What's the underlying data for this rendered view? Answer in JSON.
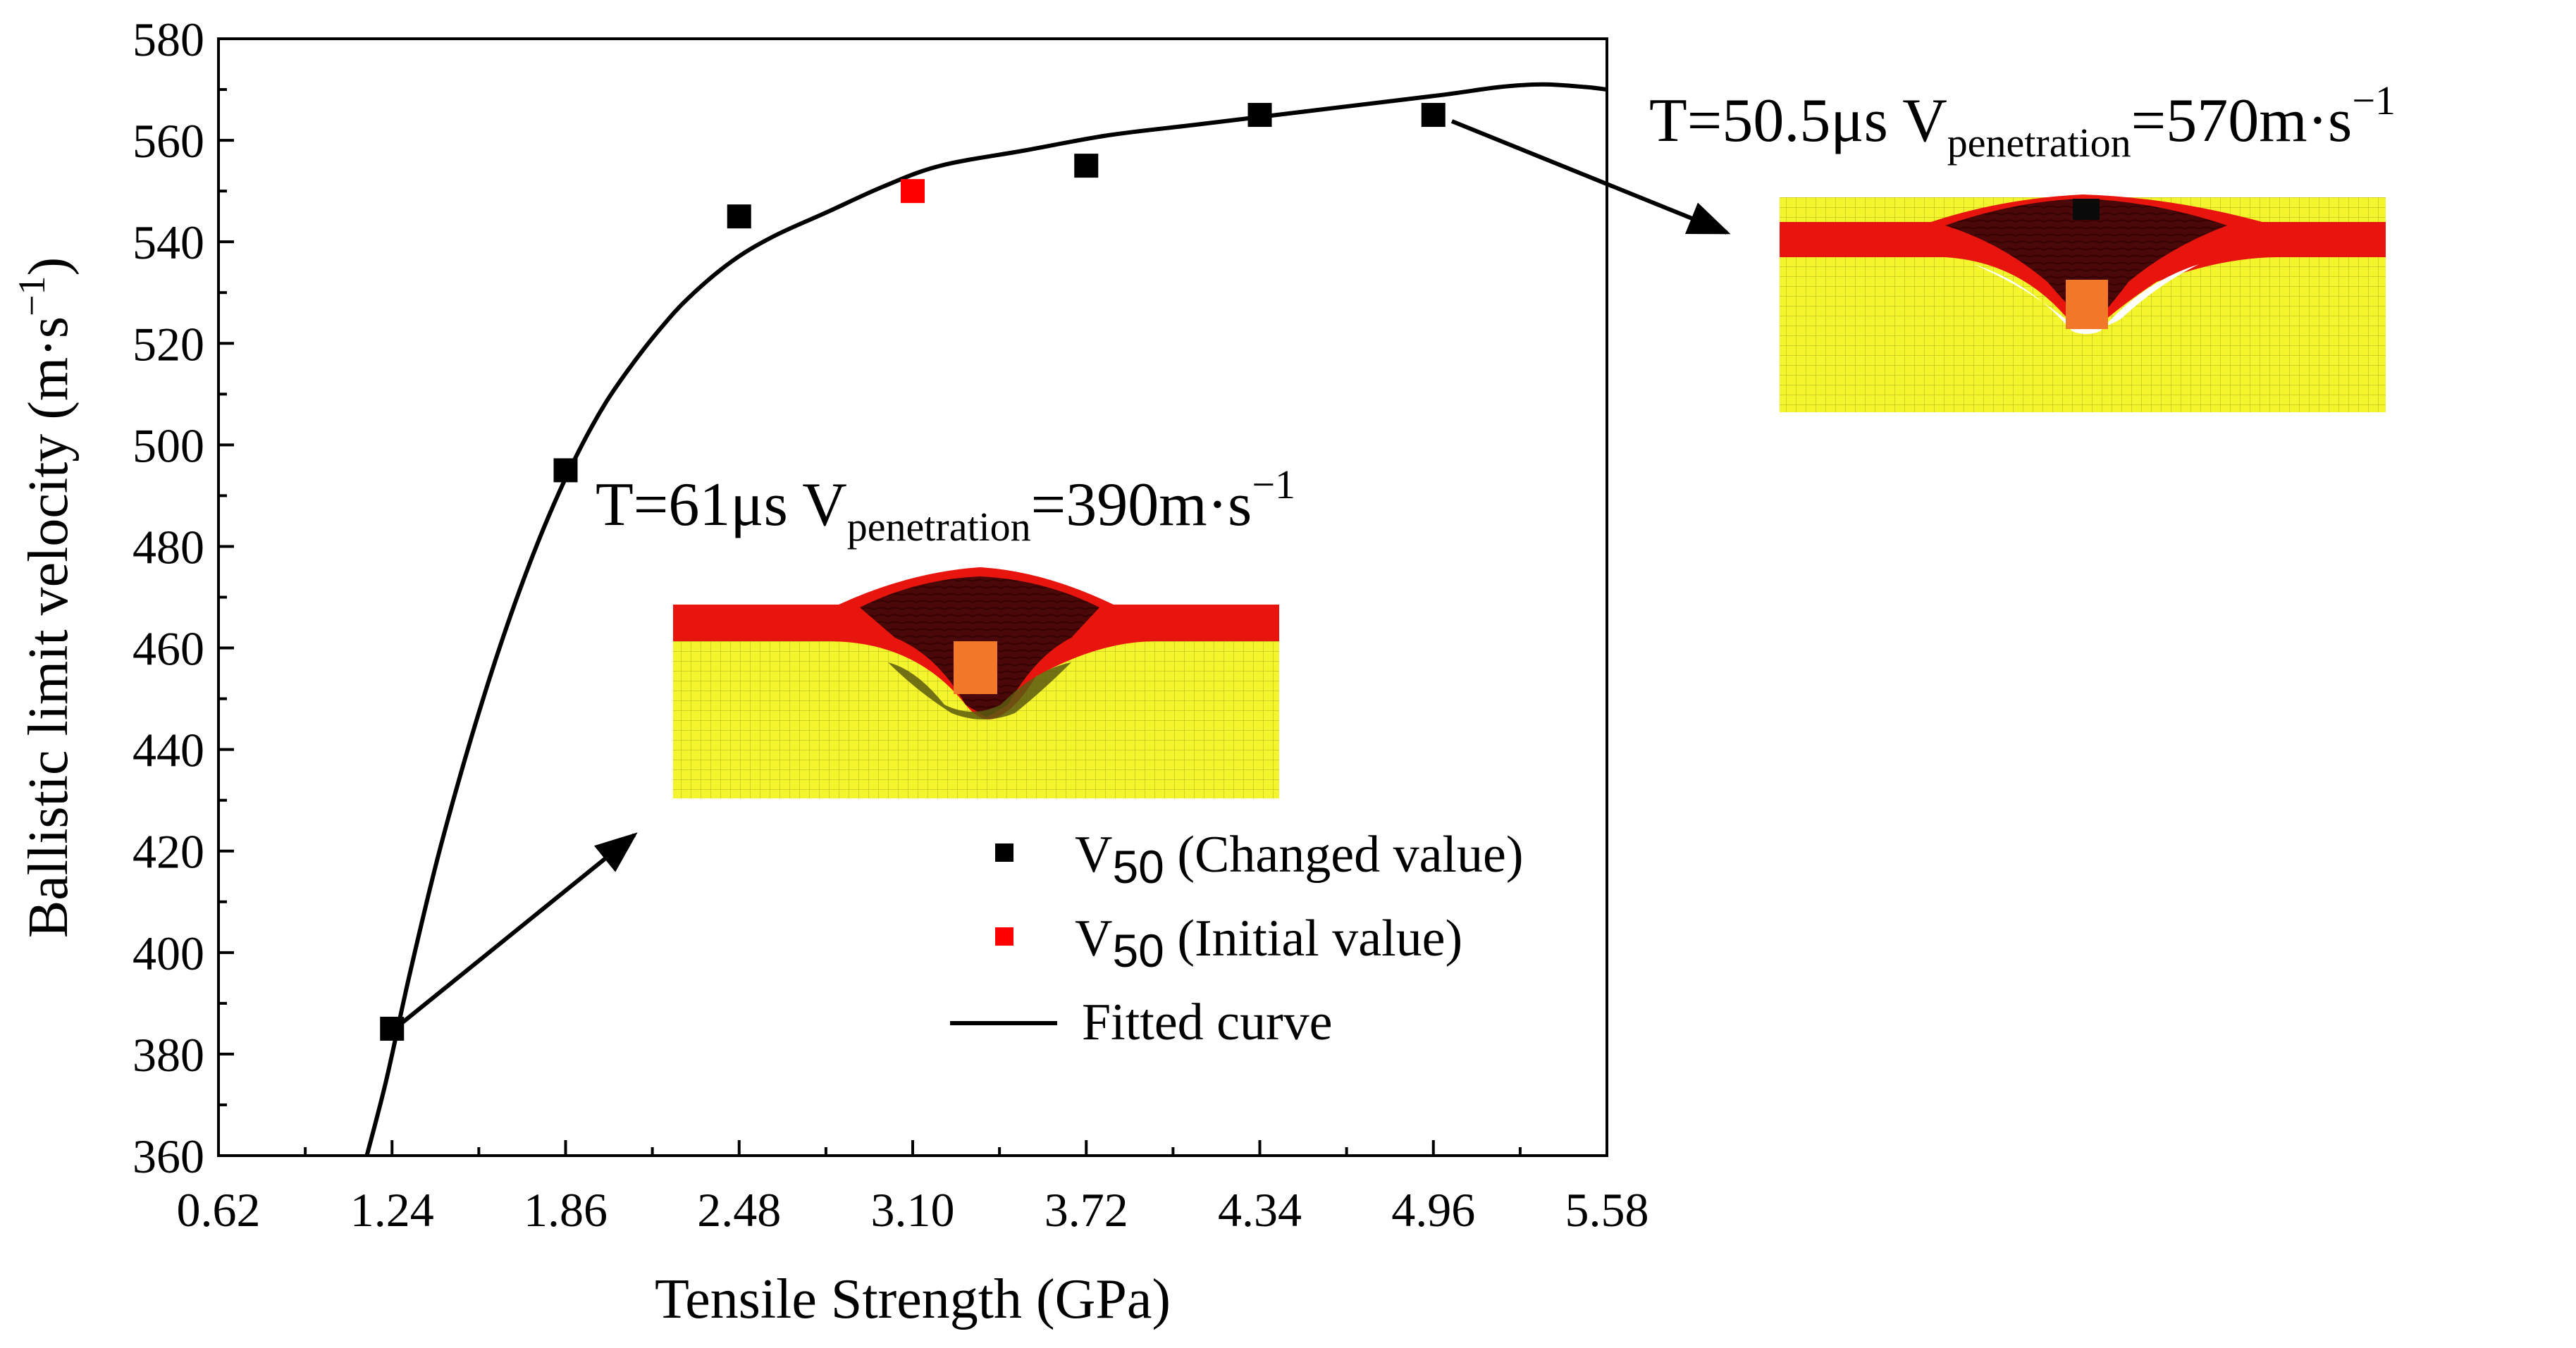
{
  "chart_data": {
    "type": "scatter",
    "xlabel": "Tensile Strength (GPa)",
    "ylabel": "Ballistic limit velocity (m·s",
    "ylabel_sup": "−1",
    "ylabel_close": ")",
    "x_ticks": [
      "0.62",
      "1.24",
      "1.86",
      "2.48",
      "3.10",
      "3.72",
      "4.34",
      "4.96",
      "5.58"
    ],
    "xlim": [
      0.62,
      5.58
    ],
    "ylim": [
      360,
      580
    ],
    "y_ticks": [
      360,
      380,
      400,
      420,
      440,
      460,
      480,
      500,
      520,
      540,
      560,
      580
    ],
    "series": [
      {
        "name": "V50 (Changed value)",
        "color": "#000000",
        "x": [
          1.24,
          1.86,
          2.48,
          3.72,
          4.34,
          4.96
        ],
        "y": [
          385,
          495,
          545,
          555,
          565,
          565
        ]
      },
      {
        "name": "V50 (Initial value)",
        "color": "#ff0000",
        "x": [
          3.1
        ],
        "y": [
          550
        ]
      }
    ],
    "fitted_curve": {
      "name": "Fitted curve",
      "color": "#000000",
      "x": [
        1.15,
        1.22,
        1.3,
        1.4,
        1.5,
        1.6,
        1.7,
        1.8,
        1.9,
        2.0,
        2.1,
        2.2,
        2.3,
        2.45,
        2.6,
        2.8,
        3.0,
        3.2,
        3.5,
        3.8,
        4.1,
        4.4,
        4.7,
        5.0,
        5.2,
        5.35,
        5.5,
        5.58
      ],
      "y": [
        360,
        375,
        395,
        418,
        438,
        456,
        472,
        486,
        498,
        508,
        516,
        523,
        529,
        536,
        541,
        546,
        551,
        555,
        558,
        561,
        563,
        565,
        567,
        569,
        570.5,
        571,
        570.5,
        570
      ]
    },
    "legend": {
      "position": "bottom-right",
      "entries": [
        {
          "label": "V",
          "sub": "50",
          "rest": " (Changed value)",
          "marker": "square",
          "color": "#000000"
        },
        {
          "label": "V",
          "sub": "50",
          "rest": " (Initial value)",
          "marker": "square",
          "color": "#ff0000"
        },
        {
          "label": "Fitted curve",
          "sub": "",
          "rest": "",
          "marker": "line",
          "color": "#000000"
        }
      ]
    },
    "annotations": [
      {
        "t": "T=61μs  V",
        "sub": "penetration",
        "rest": "=390m·s",
        "sup": "−1",
        "from_x": 1.24,
        "from_y": 385
      },
      {
        "t": "T=50.5μs  V",
        "sub": "penetration",
        "rest": "=570m·s",
        "sup": "−1",
        "from_x": 4.96,
        "from_y": 565
      }
    ],
    "colors": {
      "yellow": "#f5f52e",
      "red": "#e8140e",
      "dark": "#3a0505",
      "orange": "#f07828",
      "olive": "#5a5a10"
    }
  }
}
